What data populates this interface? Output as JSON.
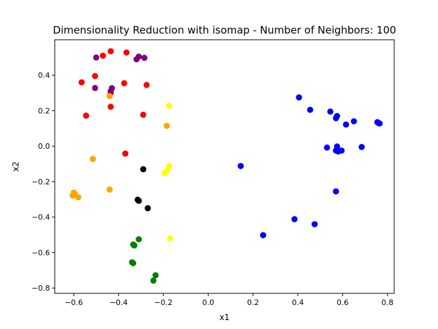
{
  "chart_data": {
    "type": "scatter",
    "title": "Dimensionality Reduction with isomap - Number of Neighbors: 100",
    "xlabel": "x1",
    "ylabel": "x2",
    "xlim": [
      -0.685,
      0.83
    ],
    "ylim": [
      -0.83,
      0.6
    ],
    "xticks": [
      -0.6,
      -0.4,
      -0.2,
      0.0,
      0.2,
      0.4,
      0.6,
      0.8
    ],
    "xtick_labels": [
      "−0.6",
      "−0.4",
      "−0.2",
      "0.0",
      "0.2",
      "0.4",
      "0.6",
      "0.8"
    ],
    "yticks": [
      -0.8,
      -0.6,
      -0.4,
      -0.2,
      0.0,
      0.2,
      0.4
    ],
    "ytick_labels": [
      "−0.8",
      "−0.6",
      "−0.4",
      "−0.2",
      "0.0",
      "0.2",
      "0.4"
    ],
    "grid": false,
    "legend": false,
    "series": [
      {
        "color": "#0000ff",
        "points": [
          [
            0.405,
            0.275
          ],
          [
            0.455,
            0.205
          ],
          [
            0.545,
            0.195
          ],
          [
            0.575,
            0.17
          ],
          [
            0.57,
            0.158
          ],
          [
            0.615,
            0.122
          ],
          [
            0.65,
            0.14
          ],
          [
            0.755,
            0.135
          ],
          [
            0.76,
            0.13
          ],
          [
            0.765,
            0.128
          ],
          [
            0.53,
            -0.008
          ],
          [
            0.575,
            -0.002
          ],
          [
            0.57,
            -0.025
          ],
          [
            0.58,
            -0.03
          ],
          [
            0.595,
            -0.025
          ],
          [
            0.685,
            -0.005
          ],
          [
            0.145,
            -0.112
          ],
          [
            0.57,
            -0.255
          ],
          [
            0.385,
            -0.412
          ],
          [
            0.475,
            -0.44
          ],
          [
            0.245,
            -0.502
          ]
        ]
      },
      {
        "color": "#ff0000",
        "points": [
          [
            -0.435,
            0.535
          ],
          [
            -0.47,
            0.51
          ],
          [
            -0.365,
            0.528
          ],
          [
            -0.505,
            0.395
          ],
          [
            -0.565,
            0.36
          ],
          [
            -0.375,
            0.355
          ],
          [
            -0.275,
            0.345
          ],
          [
            -0.435,
            0.3
          ],
          [
            -0.435,
            0.222
          ],
          [
            -0.545,
            0.172
          ],
          [
            -0.29,
            0.177
          ],
          [
            -0.37,
            -0.042
          ]
        ]
      },
      {
        "color": "#800080",
        "points": [
          [
            -0.5,
            0.5
          ],
          [
            -0.31,
            0.505
          ],
          [
            -0.285,
            0.498
          ],
          [
            -0.32,
            0.49
          ],
          [
            -0.43,
            0.327
          ],
          [
            -0.505,
            0.328
          ],
          [
            -0.435,
            0.31
          ]
        ]
      },
      {
        "color": "#ffa500",
        "points": [
          [
            -0.44,
            0.282
          ],
          [
            -0.185,
            0.115
          ],
          [
            -0.515,
            -0.072
          ],
          [
            -0.44,
            -0.245
          ],
          [
            -0.6,
            -0.262
          ],
          [
            -0.595,
            -0.268
          ],
          [
            -0.605,
            -0.278
          ],
          [
            -0.58,
            -0.288
          ]
        ]
      },
      {
        "color": "#ffff00",
        "points": [
          [
            -0.175,
            0.228
          ],
          [
            -0.175,
            -0.112
          ],
          [
            -0.185,
            -0.142
          ],
          [
            -0.195,
            -0.152
          ],
          [
            -0.17,
            -0.52
          ]
        ]
      },
      {
        "color": "#000000",
        "points": [
          [
            -0.29,
            -0.13
          ],
          [
            -0.315,
            -0.302
          ],
          [
            -0.31,
            -0.308
          ],
          [
            -0.27,
            -0.35
          ]
        ]
      },
      {
        "color": "#008000",
        "points": [
          [
            -0.31,
            -0.525
          ],
          [
            -0.335,
            -0.555
          ],
          [
            -0.33,
            -0.56
          ],
          [
            -0.34,
            -0.655
          ],
          [
            -0.335,
            -0.66
          ],
          [
            -0.235,
            -0.728
          ],
          [
            -0.245,
            -0.758
          ]
        ]
      }
    ]
  }
}
